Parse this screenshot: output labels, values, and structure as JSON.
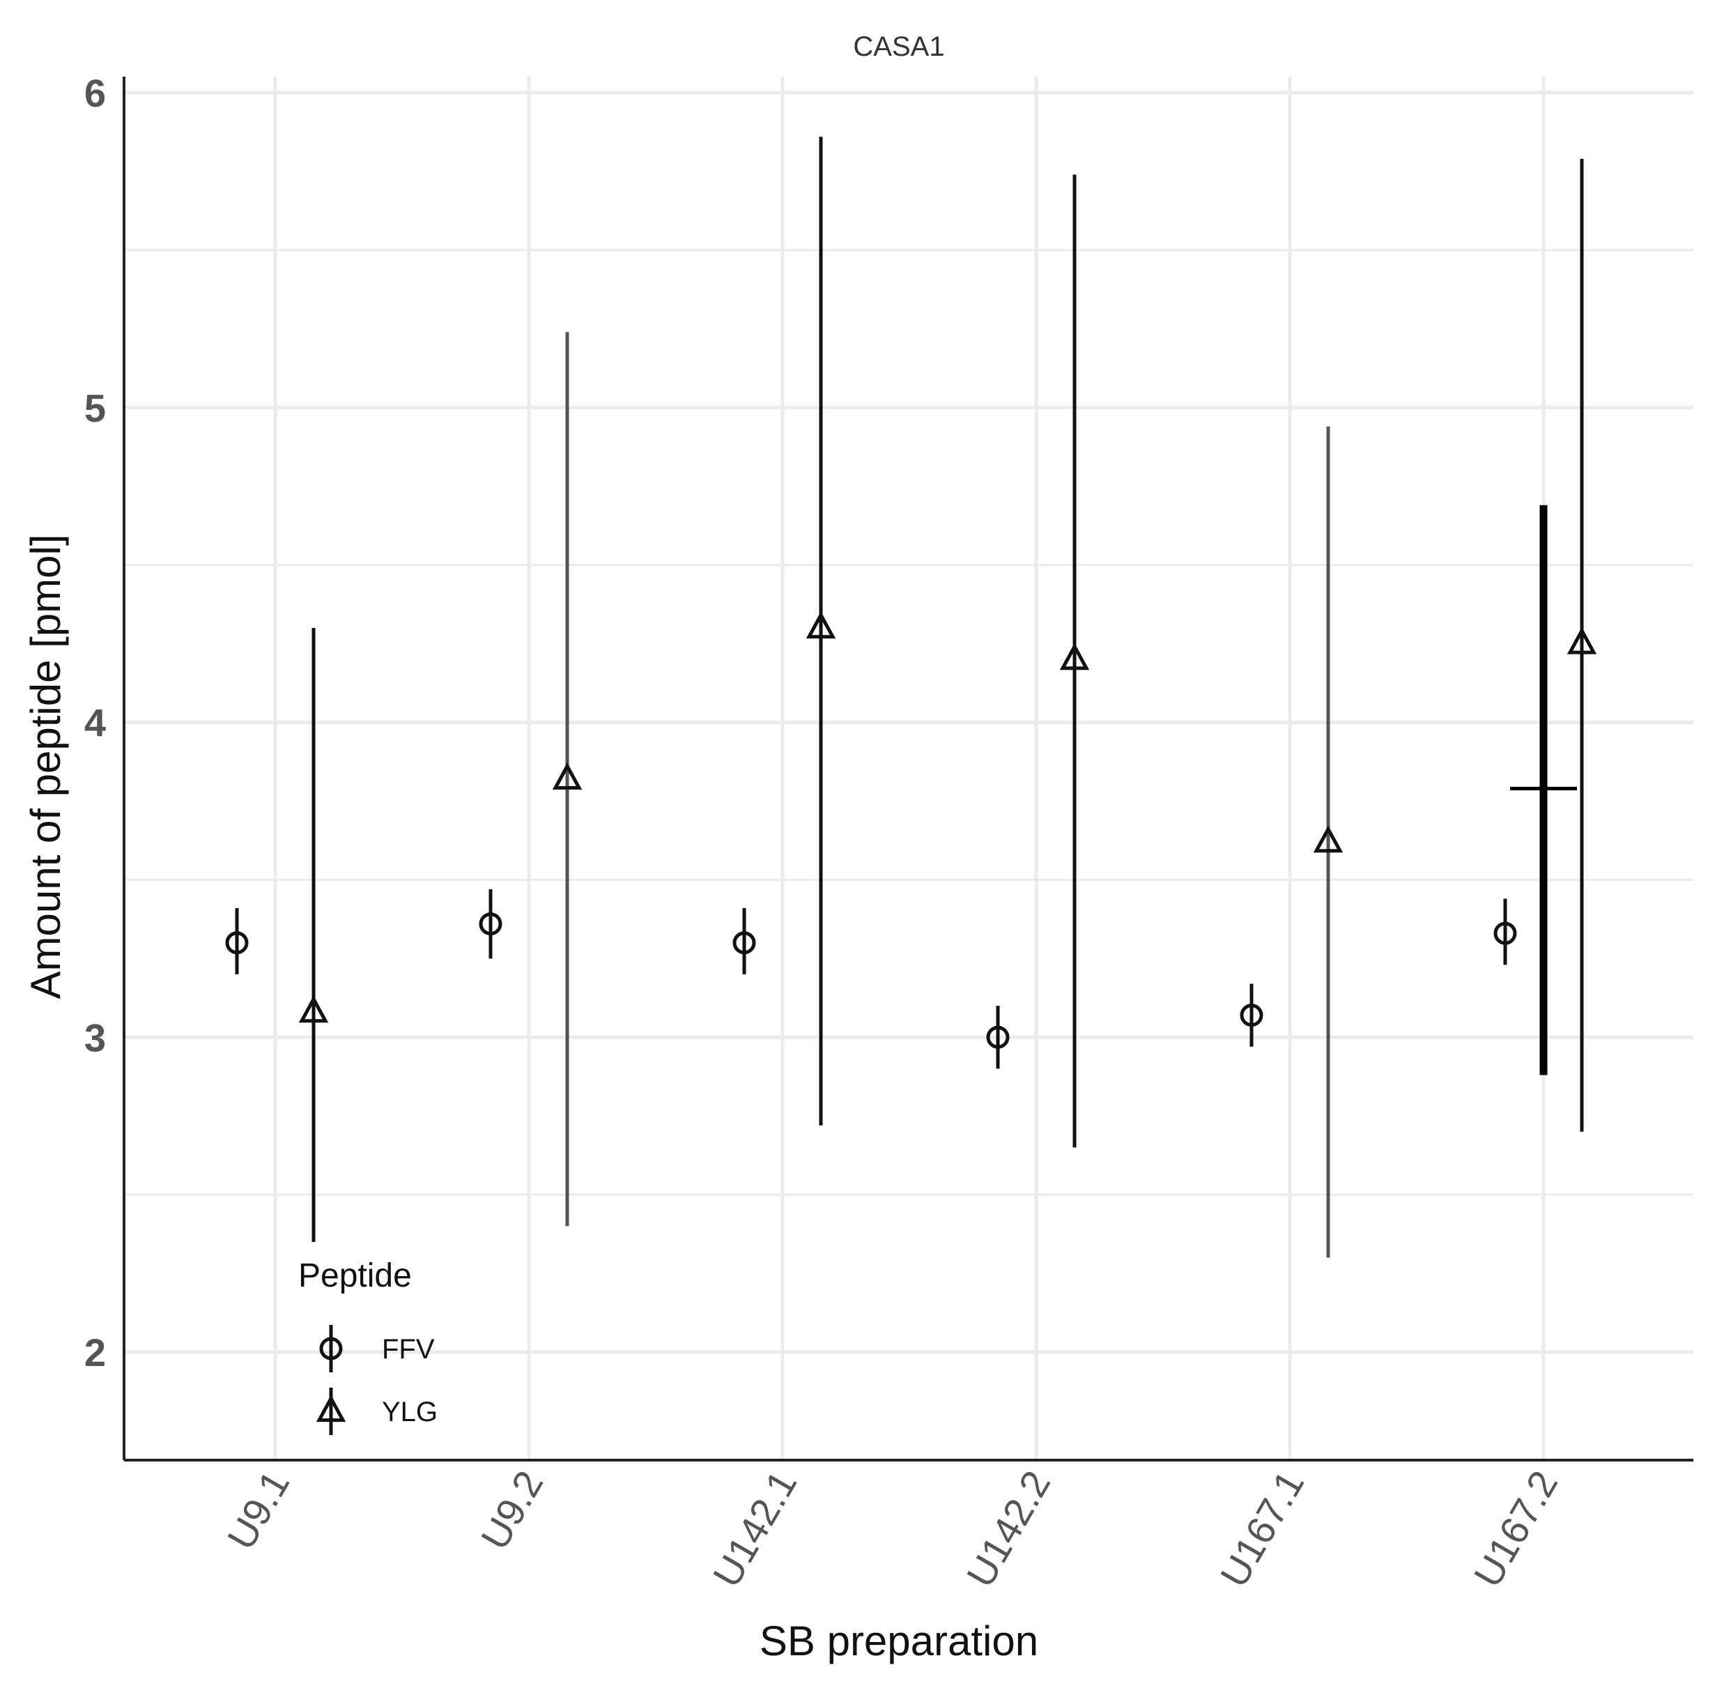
{
  "chart_data": {
    "type": "scatter",
    "title": "CASA1",
    "xlabel": "SB preparation",
    "ylabel": "Amount of peptide [pmol]",
    "categories": [
      "U9.1",
      "U9.2",
      "U142.1",
      "U142.2",
      "U167.1",
      "U167.2"
    ],
    "ylim": [
      1.65,
      6.05
    ],
    "yticks": [
      2,
      3,
      4,
      5,
      6
    ],
    "grid": true,
    "legend": {
      "title": "Peptide",
      "position": "bottom-left"
    },
    "series": [
      {
        "name": "FFV",
        "marker": "circle",
        "values": [
          3.3,
          3.36,
          3.3,
          3.0,
          3.07,
          3.33
        ],
        "lower": [
          3.2,
          3.25,
          3.2,
          2.9,
          2.97,
          3.23
        ],
        "upper": [
          3.41,
          3.47,
          3.41,
          3.1,
          3.17,
          3.44
        ]
      },
      {
        "name": "YLG",
        "marker": "triangle",
        "values": [
          3.08,
          3.82,
          4.3,
          4.2,
          3.62,
          4.25
        ],
        "lower": [
          2.35,
          2.4,
          2.72,
          2.65,
          2.3,
          2.7
        ],
        "upper": [
          4.3,
          5.24,
          5.86,
          5.74,
          4.94,
          5.79
        ]
      }
    ],
    "summary": {
      "category": "U167.2",
      "center": 3.79,
      "lower": 2.88,
      "upper": 4.69
    }
  }
}
